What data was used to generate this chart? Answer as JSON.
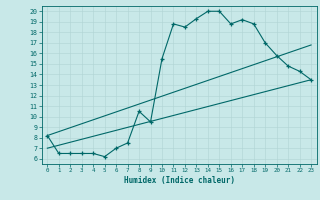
{
  "xlabel": "Humidex (Indice chaleur)",
  "bg_color": "#c8e8e8",
  "grid_color": "#b0d4d4",
  "line_color": "#006868",
  "xlim": [
    -0.5,
    23.5
  ],
  "ylim": [
    5.5,
    20.5
  ],
  "xticks": [
    0,
    1,
    2,
    3,
    4,
    5,
    6,
    7,
    8,
    9,
    10,
    11,
    12,
    13,
    14,
    15,
    16,
    17,
    18,
    19,
    20,
    21,
    22,
    23
  ],
  "yticks": [
    6,
    7,
    8,
    9,
    10,
    11,
    12,
    13,
    14,
    15,
    16,
    17,
    18,
    19,
    20
  ],
  "series": [
    {
      "x": [
        0,
        1,
        2,
        3,
        4,
        5,
        6,
        7,
        8,
        9,
        10,
        11,
        12,
        13,
        14,
        15,
        16,
        17,
        18,
        19,
        20,
        21,
        22,
        23
      ],
      "y": [
        8.2,
        6.5,
        6.5,
        6.5,
        6.5,
        6.2,
        7.0,
        7.5,
        10.5,
        9.5,
        15.5,
        18.8,
        18.5,
        19.3,
        20.0,
        20.0,
        18.8,
        19.2,
        18.8,
        17.0,
        15.8,
        14.8,
        14.3,
        13.5
      ],
      "markers": true
    },
    {
      "x": [
        0,
        23
      ],
      "y": [
        7.0,
        13.5
      ],
      "markers": false
    },
    {
      "x": [
        0,
        23
      ],
      "y": [
        8.2,
        16.8
      ],
      "markers": false
    }
  ]
}
